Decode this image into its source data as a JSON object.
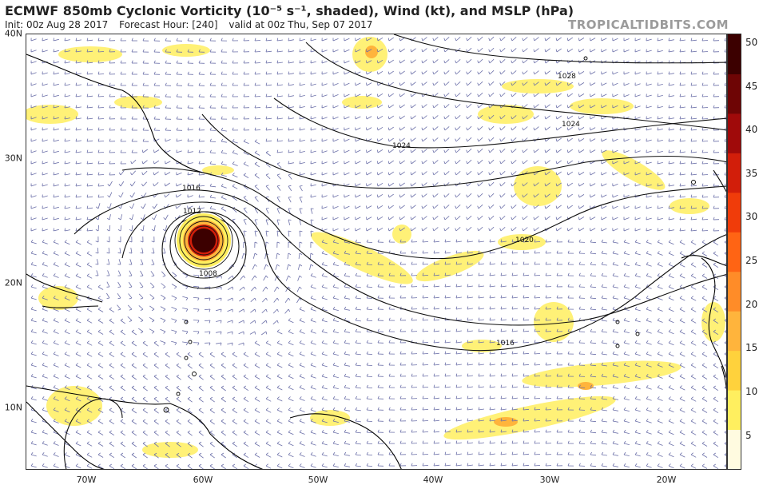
{
  "header": {
    "title": "ECMWF 850mb Cyclonic Vorticity (10⁻⁵ s⁻¹, shaded), Wind (kt), and MSLP (hPa)",
    "init": "Init: 00z Aug 28 2017",
    "forecast_hour": "Forecast Hour: [240]",
    "valid": "valid at 00z Thu, Sep 07 2017",
    "brand": "TROPICALTIDBITS.COM"
  },
  "axes": {
    "lat_labels": [
      "40N",
      "30N",
      "20N",
      "10N"
    ],
    "lon_labels": [
      "70W",
      "60W",
      "50W",
      "40W",
      "30W",
      "20W"
    ]
  },
  "colorbar": {
    "labels": [
      "50",
      "45",
      "40",
      "35",
      "30",
      "25",
      "20",
      "15",
      "10",
      "5"
    ],
    "colors": [
      "#fffbe0",
      "#ffef5f",
      "#ffd23c",
      "#ffb43c",
      "#ff8c28",
      "#ff6414",
      "#f03c0a",
      "#d21e0a",
      "#a00a0a",
      "#6e0505",
      "#3c0000"
    ]
  },
  "isobars": {
    "labels": [
      "1028",
      "1024",
      "1024",
      "1020",
      "1016",
      "1016",
      "1012",
      "1008"
    ]
  },
  "storm": {
    "center_lat": 23.5,
    "center_lon": -60.3
  }
}
